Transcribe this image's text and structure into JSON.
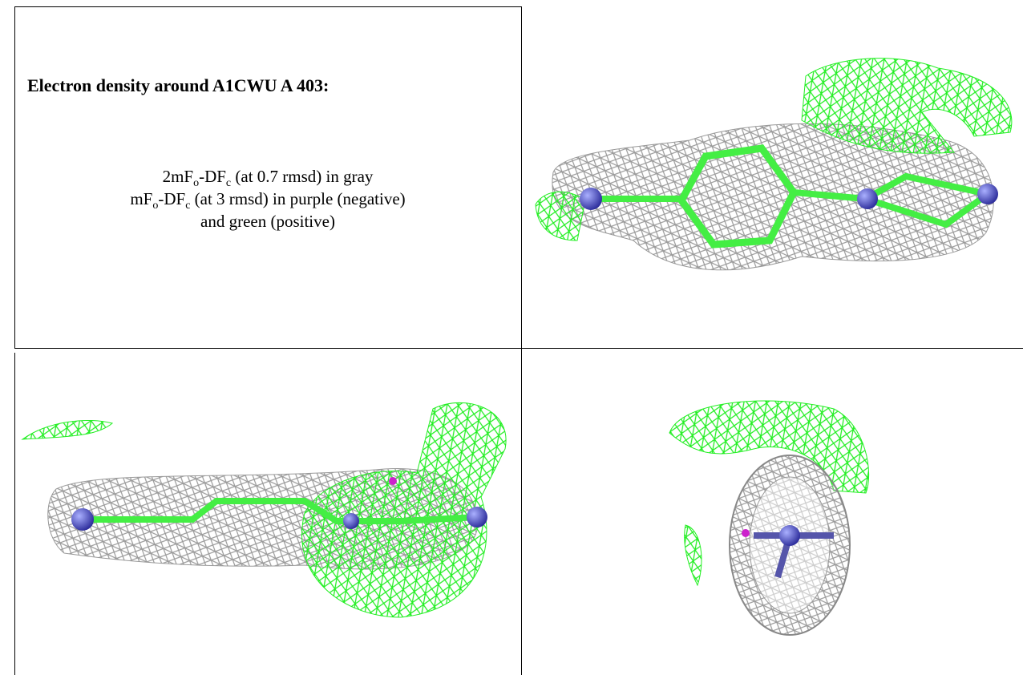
{
  "caption": {
    "title": "Electron density around A1CWU A 403:",
    "lines": [
      [
        "2mF",
        "o",
        "-DF",
        "c",
        " (at 0.7 rmsd) in gray"
      ],
      [
        "mF",
        "o",
        "-DF",
        "c",
        " (at 3 rmsd) in purple (negative)"
      ],
      [
        "and green (positive)"
      ]
    ]
  }
}
